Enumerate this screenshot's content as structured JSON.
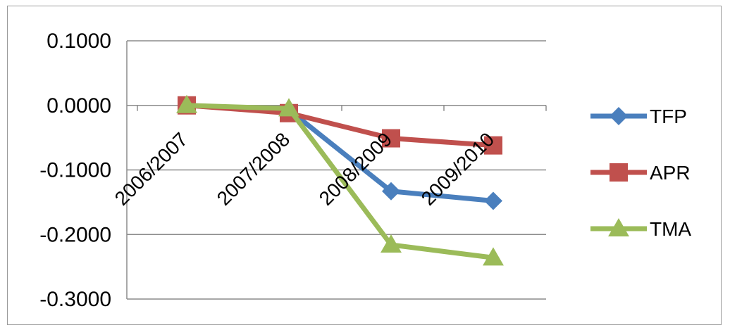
{
  "chart_data": {
    "type": "line",
    "categories": [
      "2006/2007",
      "2007/2008",
      "2008/2009",
      "2009/2010"
    ],
    "series": [
      {
        "name": "TFP",
        "values": [
          0.0,
          -0.007,
          -0.133,
          -0.148
        ],
        "color": "#4a7fbd",
        "marker": "diamond"
      },
      {
        "name": "APR",
        "values": [
          0.0,
          -0.012,
          -0.051,
          -0.062
        ],
        "color": "#c0504d",
        "marker": "square"
      },
      {
        "name": "TMA",
        "values": [
          0.0,
          -0.005,
          -0.216,
          -0.236
        ],
        "color": "#9bbb59",
        "marker": "triangle"
      }
    ],
    "ylim": [
      -0.3,
      0.1
    ],
    "yticks": [
      0.1,
      0.0,
      -0.1,
      -0.2,
      -0.3
    ],
    "ytick_labels": [
      "0.1000",
      "0.0000",
      "-0.1000",
      "-0.2000",
      "-0.3000"
    ],
    "grid": true,
    "legend": "right"
  }
}
